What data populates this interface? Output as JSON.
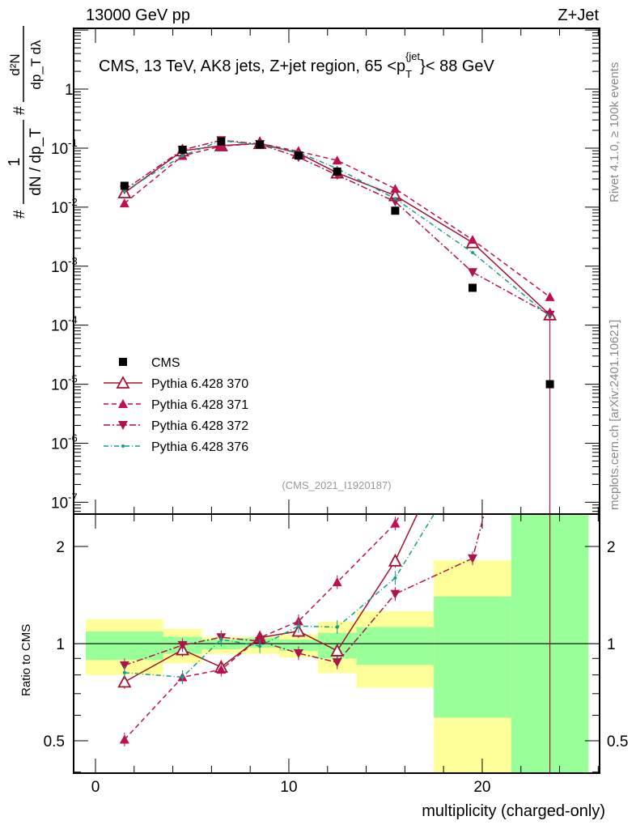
{
  "chart_data": {
    "type": "line",
    "header_left": "13000 GeV pp",
    "header_right": "Z+Jet",
    "title_prefix": "CMS, 13 TeV, AK8 jets, Z+jet region, 65 <p",
    "title_sup": "{jet",
    "title_sub": "T",
    "title_suffix": "}< 88 GeV",
    "ylabel_num": "1",
    "ylabel_den": "dN / dp_T",
    "ylabel_right_num": "d²N",
    "ylabel_right_den": "dp_T dλ",
    "ylabel_hash": "#",
    "ratio_ylabel": "Ratio to CMS",
    "xlabel": "multiplicity (charged-only)",
    "side_label_1": "Rivet 4.1.0, ≥ 100k events",
    "side_label_2": "mcplots.cern.ch [arXiv:2401.10621]",
    "analysis_id": "(CMS_2021_I1920187)",
    "xlim": [
      -1.13,
      26.07
    ],
    "ylim": [
      6.3e-08,
      10.7
    ],
    "ratio_ylim": [
      0.397,
      2.52
    ],
    "log_y": true,
    "legend_placement": "lower-left",
    "x_ticks": [
      0,
      10,
      20
    ],
    "y_tick_labels": [
      "1",
      "10",
      "10",
      "10",
      "10",
      "10",
      "10",
      "10"
    ],
    "y_tick_exponents": [
      "",
      "-1",
      "-2",
      "-3",
      "-4",
      "-5",
      "-6",
      "-7"
    ],
    "ratio_ticks": [
      "0.5",
      "1",
      "2"
    ],
    "bin_edges": [
      -0.5,
      3.5,
      5.5,
      7.5,
      9.5,
      11.5,
      13.5,
      17.5,
      21.5,
      25.5
    ],
    "x": [
      1.5,
      4.5,
      6.5,
      8.5,
      10.5,
      12.5,
      15.5,
      19.5,
      23.5
    ],
    "band_inner": [
      [
        0.89,
        1.09
      ],
      [
        0.93,
        1.05
      ],
      [
        0.96,
        1.03
      ],
      [
        0.97,
        1.04
      ],
      [
        0.95,
        1.03
      ],
      [
        0.9,
        1.08
      ],
      [
        0.86,
        1.125
      ],
      [
        0.59,
        1.4
      ],
      [
        0.01,
        100
      ]
    ],
    "band_outer": [
      [
        0.8,
        1.19
      ],
      [
        0.87,
        1.11
      ],
      [
        0.93,
        1.05
      ],
      [
        0.93,
        1.05
      ],
      [
        0.905,
        1.07
      ],
      [
        0.81,
        1.17
      ],
      [
        0.73,
        1.26
      ],
      [
        0.01,
        1.81
      ],
      [
        0.01,
        100
      ]
    ],
    "data": {
      "name": "CMS",
      "values": [
        0.023,
        0.094,
        0.13,
        0.115,
        0.075,
        0.04,
        0.0087,
        0.00043,
        1e-05
      ],
      "err_low": [
        0.002,
        0.004,
        0.004,
        0.004,
        0.003,
        0.002,
        0.0006,
        4e-05,
        1e-05
      ],
      "err_high": [
        0.002,
        0.004,
        0.004,
        0.004,
        0.003,
        0.002,
        0.0006,
        4e-05,
        0.00015
      ]
    },
    "series": [
      {
        "name": "Pythia 6.428 370",
        "color": "#a3122f",
        "dash": "",
        "marker": "open-up",
        "values": [
          0.0175,
          0.09,
          0.11,
          0.12,
          0.082,
          0.038,
          0.0157,
          0.0025,
          0.00015
        ]
      },
      {
        "name": "Pythia 6.428 371",
        "color": "#bf0f50",
        "dash": "6,4",
        "marker": "filled-up",
        "values": [
          0.0116,
          0.074,
          0.108,
          0.12,
          0.088,
          0.062,
          0.0205,
          0.0028,
          0.0003
        ]
      },
      {
        "name": "Pythia 6.428 372",
        "color": "#b0124c",
        "dash": "8,3,2,3",
        "marker": "filled-down",
        "values": [
          0.0197,
          0.093,
          0.136,
          0.117,
          0.07,
          0.035,
          0.0124,
          0.00079,
          0.00015
        ]
      },
      {
        "name": "Pythia 6.428 376",
        "color": "#169c8c",
        "dash": "6,3,1,3",
        "marker": "dot",
        "values": [
          0.0187,
          0.074,
          0.134,
          0.113,
          0.085,
          0.045,
          0.0139,
          0.0017,
          0.00014
        ]
      }
    ],
    "colors": {
      "band_inner": "#99ff99",
      "band_outer": "#ffff99",
      "data": "#000000",
      "side_text": "#888888"
    }
  }
}
